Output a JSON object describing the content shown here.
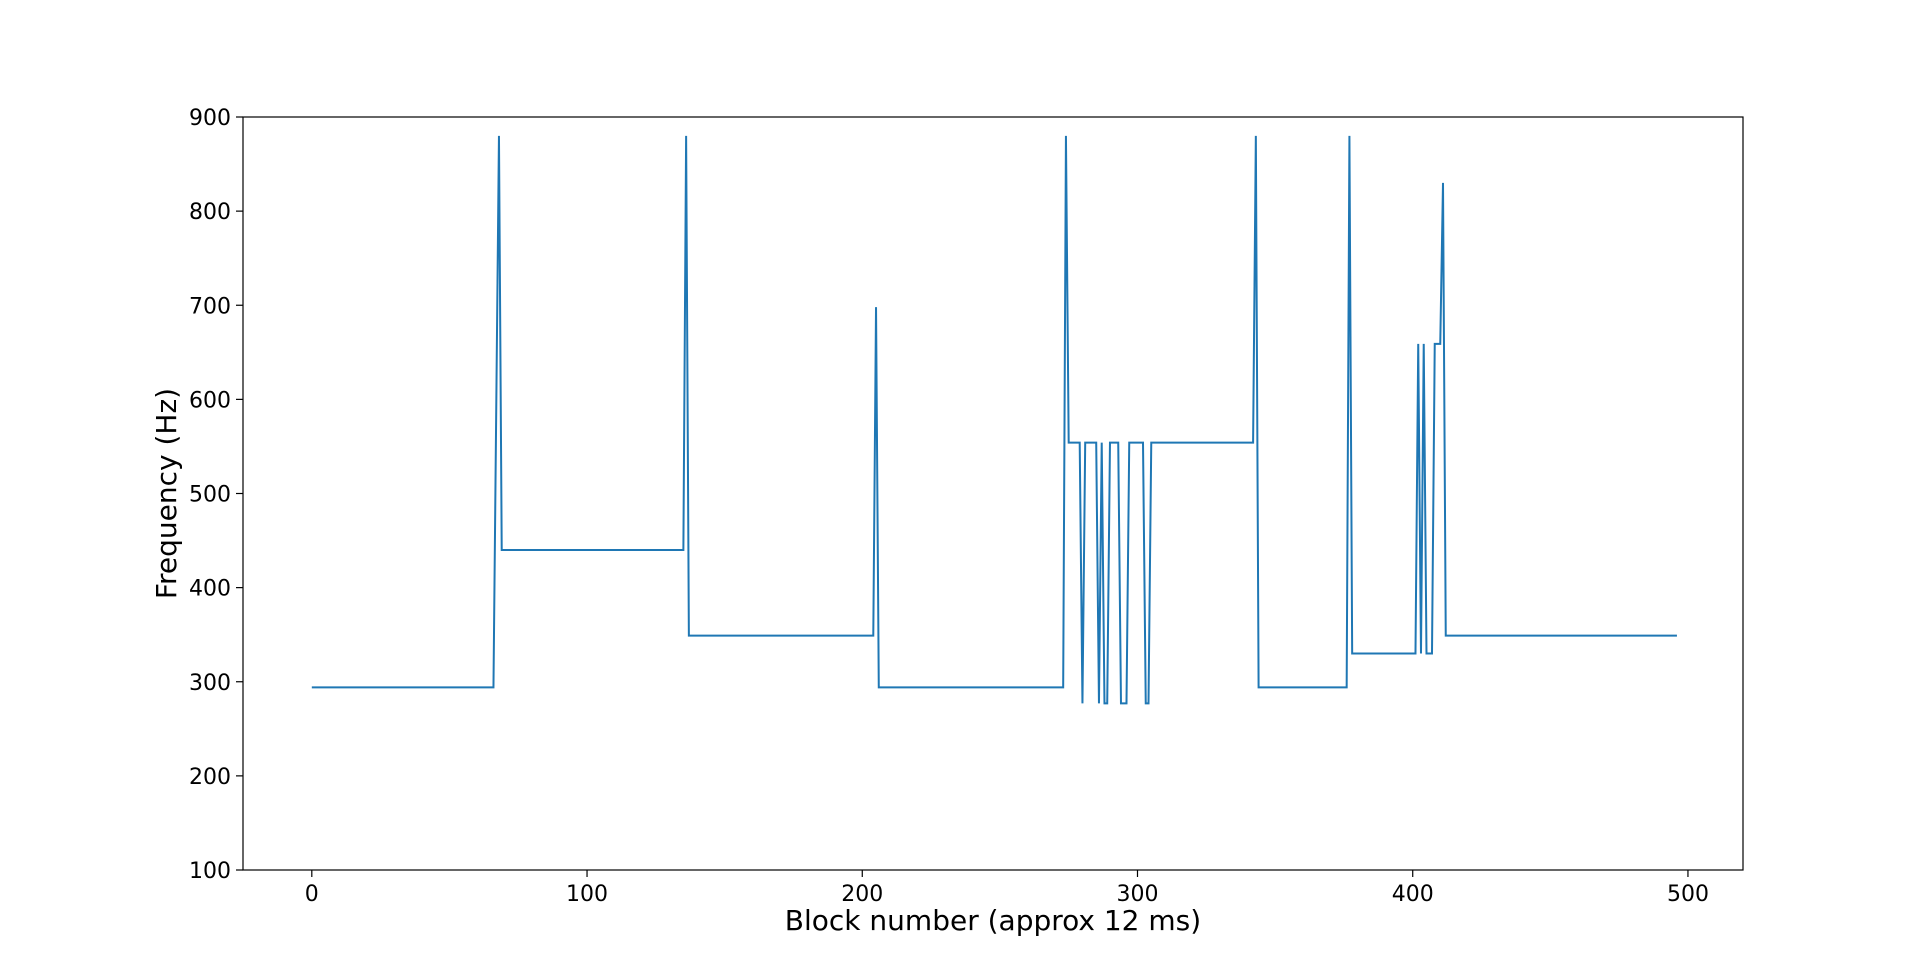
{
  "chart_data": {
    "type": "line",
    "title": "",
    "xlabel": "Block number (approx 12 ms)",
    "ylabel": "Frequency (Hz)",
    "xlim": [
      -25,
      520
    ],
    "ylim": [
      100,
      900
    ],
    "xticks": [
      0,
      100,
      200,
      300,
      400,
      500
    ],
    "yticks": [
      100,
      200,
      300,
      400,
      500,
      600,
      700,
      800,
      900
    ],
    "grid": false,
    "legend": "none",
    "series": [
      {
        "color": "#1f77b4",
        "points": [
          [
            0,
            294
          ],
          [
            66,
            294
          ],
          [
            68,
            880
          ],
          [
            69,
            440
          ],
          [
            135,
            440
          ],
          [
            136,
            880
          ],
          [
            137,
            349
          ],
          [
            204,
            349
          ],
          [
            205,
            698
          ],
          [
            206,
            294
          ],
          [
            273,
            294
          ],
          [
            274,
            880
          ],
          [
            275,
            554
          ],
          [
            279,
            554
          ],
          [
            280,
            277
          ],
          [
            281,
            554
          ],
          [
            285,
            554
          ],
          [
            286,
            277
          ],
          [
            287,
            554
          ],
          [
            288,
            277
          ],
          [
            289,
            277
          ],
          [
            290,
            554
          ],
          [
            293,
            554
          ],
          [
            294,
            277
          ],
          [
            296,
            277
          ],
          [
            297,
            554
          ],
          [
            302,
            554
          ],
          [
            303,
            277
          ],
          [
            304,
            277
          ],
          [
            305,
            554
          ],
          [
            342,
            554
          ],
          [
            343,
            880
          ],
          [
            344,
            294
          ],
          [
            376,
            294
          ],
          [
            377,
            880
          ],
          [
            378,
            330
          ],
          [
            401,
            330
          ],
          [
            402,
            659
          ],
          [
            403,
            330
          ],
          [
            404,
            659
          ],
          [
            405,
            330
          ],
          [
            407,
            330
          ],
          [
            408,
            659
          ],
          [
            410,
            659
          ],
          [
            411,
            830
          ],
          [
            412,
            349
          ],
          [
            496,
            349
          ]
        ]
      }
    ]
  }
}
